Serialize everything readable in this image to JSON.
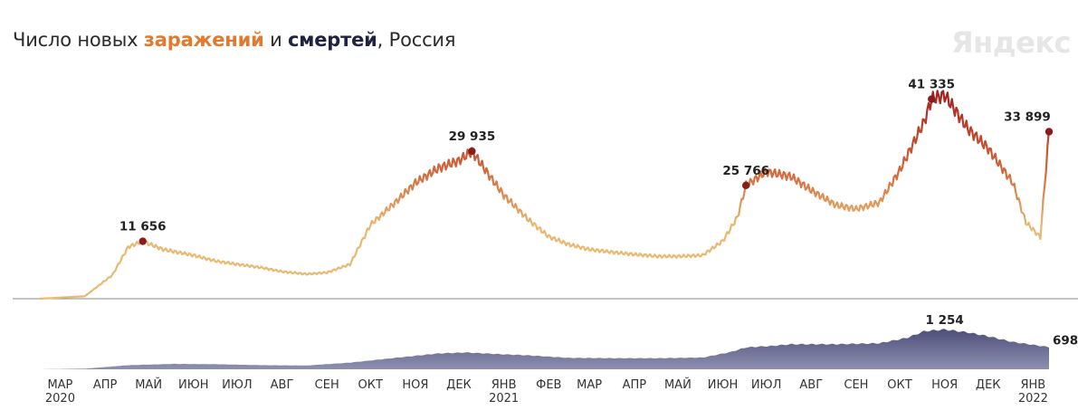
{
  "title": {
    "prefix": "Число новых ",
    "infections": "заражений",
    "middle": " и ",
    "deaths": "смертей",
    "suffix": ", Россия"
  },
  "logo": "Яндекс",
  "colors": {
    "infections_low": "#e8b971",
    "infections_high": "#a31f1f",
    "deaths_fill": "#4a4c78",
    "baseline": "#8a8a8a"
  },
  "chart_data": [
    {
      "type": "line",
      "name": "infections",
      "x": [
        "2020-03-01",
        "2020-04-01",
        "2020-04-20",
        "2020-05-01",
        "2020-05-11",
        "2020-05-25",
        "2020-06-15",
        "2020-07-01",
        "2020-07-15",
        "2020-08-01",
        "2020-08-15",
        "2020-09-01",
        "2020-09-15",
        "2020-10-01",
        "2020-10-15",
        "2020-11-01",
        "2020-11-15",
        "2020-12-01",
        "2020-12-15",
        "2020-12-24",
        "2021-01-05",
        "2021-01-15",
        "2021-02-01",
        "2021-02-15",
        "2021-03-01",
        "2021-03-15",
        "2021-04-01",
        "2021-04-15",
        "2021-05-01",
        "2021-05-15",
        "2021-06-01",
        "2021-06-15",
        "2021-06-25",
        "2021-07-01",
        "2021-07-15",
        "2021-08-01",
        "2021-08-15",
        "2021-09-01",
        "2021-09-15",
        "2021-10-01",
        "2021-10-15",
        "2021-11-01",
        "2021-11-06",
        "2021-11-15",
        "2021-12-01",
        "2021-12-15",
        "2022-01-01",
        "2022-01-10",
        "2022-01-20",
        "2022-01-26"
      ],
      "values": [
        0,
        500,
        4800,
        10500,
        11656,
        10000,
        8800,
        7600,
        7000,
        6300,
        5500,
        5000,
        5300,
        7000,
        15000,
        19500,
        23500,
        26500,
        28000,
        29935,
        25000,
        21000,
        16000,
        12600,
        11000,
        10000,
        9400,
        9000,
        8600,
        8600,
        8800,
        11700,
        16500,
        23000,
        25766,
        24800,
        22000,
        19000,
        18200,
        19500,
        26000,
        36000,
        40500,
        41335,
        34500,
        30500,
        23500,
        15500,
        12500,
        33899
      ],
      "annotations": [
        {
          "x": "2020-05-11",
          "label": "11 656"
        },
        {
          "x": "2020-12-24",
          "label": "29 935"
        },
        {
          "x": "2021-07-01",
          "label": "25 766"
        },
        {
          "x": "2021-11-06",
          "label": "41 335"
        },
        {
          "x": "2022-01-26",
          "label": "33 899"
        }
      ]
    },
    {
      "type": "area",
      "name": "deaths",
      "x": [
        "2020-03-01",
        "2020-04-01",
        "2020-05-01",
        "2020-06-01",
        "2020-07-01",
        "2020-08-01",
        "2020-09-01",
        "2020-10-01",
        "2020-11-01",
        "2020-12-01",
        "2020-12-20",
        "2021-01-15",
        "2021-02-01",
        "2021-03-01",
        "2021-04-01",
        "2021-05-01",
        "2021-06-01",
        "2021-06-20",
        "2021-07-01",
        "2021-07-20",
        "2021-08-01",
        "2021-09-01",
        "2021-10-01",
        "2021-10-20",
        "2021-11-01",
        "2021-11-15",
        "2021-12-01",
        "2021-12-15",
        "2022-01-01",
        "2022-01-26"
      ],
      "values": [
        0,
        20,
        130,
        170,
        160,
        130,
        120,
        210,
        360,
        500,
        530,
        470,
        440,
        360,
        350,
        350,
        370,
        540,
        690,
        740,
        790,
        790,
        820,
        990,
        1200,
        1254,
        1160,
        1040,
        860,
        698
      ],
      "annotations": [
        {
          "x": "2021-11-15",
          "label": "1 254"
        },
        {
          "x": "2022-01-26",
          "label": "698"
        }
      ]
    }
  ],
  "xaxis": {
    "ticks": [
      {
        "date": "2020-03-15",
        "label": "МАР",
        "year": "2020"
      },
      {
        "date": "2020-04-15",
        "label": "АПР"
      },
      {
        "date": "2020-05-15",
        "label": "МАЙ"
      },
      {
        "date": "2020-06-15",
        "label": "ИЮН"
      },
      {
        "date": "2020-07-15",
        "label": "ИЮЛ"
      },
      {
        "date": "2020-08-15",
        "label": "АВГ"
      },
      {
        "date": "2020-09-15",
        "label": "СЕН"
      },
      {
        "date": "2020-10-15",
        "label": "ОКТ"
      },
      {
        "date": "2020-11-15",
        "label": "НОЯ"
      },
      {
        "date": "2020-12-15",
        "label": "ДЕК"
      },
      {
        "date": "2021-01-15",
        "label": "ЯНВ",
        "year": "2021"
      },
      {
        "date": "2021-02-15",
        "label": "ФЕВ"
      },
      {
        "date": "2021-03-15",
        "label": "МАР"
      },
      {
        "date": "2021-04-15",
        "label": "АПР"
      },
      {
        "date": "2021-05-15",
        "label": "МАЙ"
      },
      {
        "date": "2021-06-15",
        "label": "ИЮН"
      },
      {
        "date": "2021-07-15",
        "label": "ИЮЛ"
      },
      {
        "date": "2021-08-15",
        "label": "АВГ"
      },
      {
        "date": "2021-09-15",
        "label": "СЕН"
      },
      {
        "date": "2021-10-15",
        "label": "ОКТ"
      },
      {
        "date": "2021-11-15",
        "label": "НОЯ"
      },
      {
        "date": "2021-12-15",
        "label": "ДЕК"
      },
      {
        "date": "2022-01-15",
        "label": "ЯНВ",
        "year": "2022"
      }
    ]
  }
}
